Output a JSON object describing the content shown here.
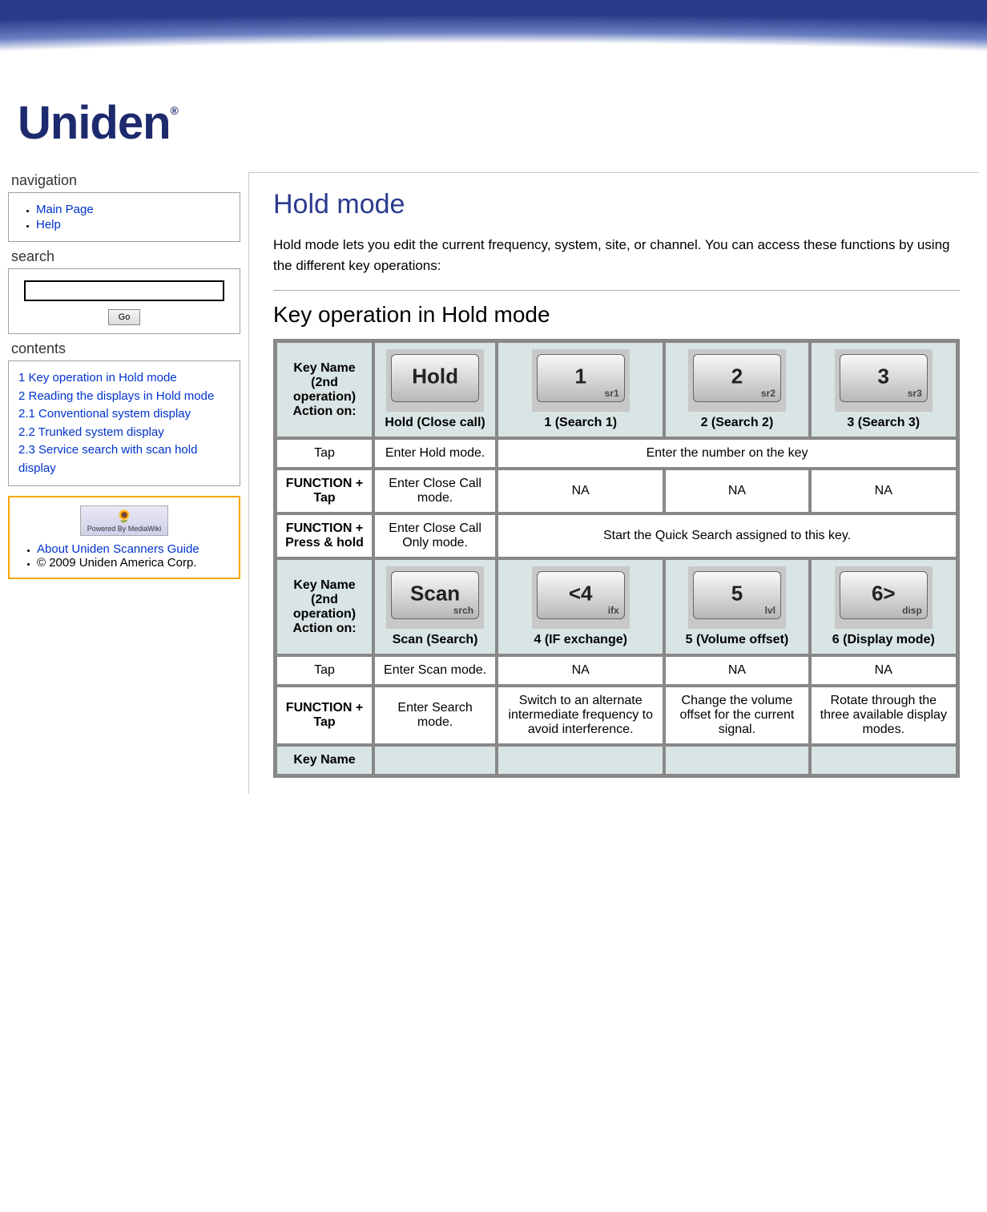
{
  "brand": "Uniden",
  "nav": {
    "heading": "navigation",
    "items": [
      "Main Page",
      "Help"
    ]
  },
  "search": {
    "heading": "search",
    "button": "Go",
    "placeholder": ""
  },
  "contents": {
    "heading": "contents",
    "items": [
      "1 Key operation in Hold mode",
      "2 Reading the displays in Hold mode",
      "2.1 Conventional system display",
      "2.2 Trunked system display",
      "2.3 Service search with scan hold display"
    ]
  },
  "footer": {
    "powered_alt": "Powered By MediaWiki",
    "about": "About Uniden Scanners Guide",
    "copyright": "© 2009 Uniden America Corp."
  },
  "page": {
    "title": "Hold mode",
    "intro": "Hold mode lets you edit the current frequency, system, site, or channel. You can access these functions by using the different key operations:",
    "section1_title": "Key operation in Hold mode"
  },
  "table": {
    "header_label_1": "Key Name (2nd operation)",
    "header_label_2": "Action on:",
    "group1": {
      "keys": [
        {
          "big": "Hold",
          "sub": "",
          "label": "Hold (Close call)"
        },
        {
          "big": "1",
          "sub": "sr1",
          "label": "1 (Search 1)"
        },
        {
          "big": "2",
          "sub": "sr2",
          "label": "2 (Search 2)"
        },
        {
          "big": "3",
          "sub": "sr3",
          "label": "3 (Search 3)"
        }
      ],
      "rows": [
        {
          "action": "Tap",
          "c0": "Enter Hold mode.",
          "merged": "Enter the number on the key"
        },
        {
          "action": "FUNCTION + Tap",
          "c0": "Enter Close Call mode.",
          "c1": "NA",
          "c2": "NA",
          "c3": "NA"
        },
        {
          "action": "FUNCTION + Press & hold",
          "c0": "Enter Close Call Only mode.",
          "merged": "Start the Quick Search assigned to this key."
        }
      ]
    },
    "group2": {
      "keys": [
        {
          "big": "Scan",
          "sub": "srch",
          "label": "Scan (Search)"
        },
        {
          "big": "<4",
          "sub": "ifx",
          "label": "4 (IF exchange)"
        },
        {
          "big": "5",
          "sub": "lvl",
          "label": "5 (Volume offset)"
        },
        {
          "big": "6>",
          "sub": "disp",
          "label": "6 (Display mode)"
        }
      ],
      "rows": [
        {
          "action": "Tap",
          "c0": "Enter Scan mode.",
          "c1": "NA",
          "c2": "NA",
          "c3": "NA"
        },
        {
          "action": "FUNCTION + Tap",
          "c0": "Enter Search mode.",
          "c1": "Switch to an alternate intermediate frequency to avoid interference.",
          "c2": "Change the volume offset for the current signal.",
          "c3": "Rotate through the three available display modes."
        }
      ]
    },
    "group3": {
      "partial": "Key Name"
    }
  },
  "colors": {
    "brand_blue": "#2b3a8f",
    "link": "#0033cc",
    "th_bg": "#d9e4e4",
    "orange_border": "#f9a602",
    "key_bg": "#c8c8c8"
  }
}
